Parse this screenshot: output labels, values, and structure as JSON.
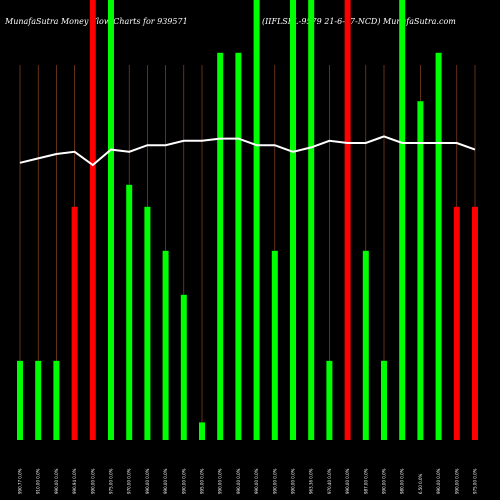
{
  "header": {
    "left": "MunafaSutra  Money Flow  Charts for 939571",
    "right": "(IIFLSFL-9579 21-6-27-NCD) MunafaSutra.com"
  },
  "colors": {
    "background": "#000000",
    "up": "#00ff00",
    "down": "#ff0000",
    "line": "#ffffff",
    "gridline": "#a0522d"
  },
  "chart_data": {
    "type": "bar",
    "ylim": [
      0,
      100
    ],
    "categories": [
      "990.77 0.0%",
      "910.00 0.0%",
      "990.00 0.0%",
      "990.94 0.0%",
      "990.00 0.0%",
      "975.00 0.0%",
      "970.00 0.0%",
      "990.00 0.0%",
      "990.00 0.0%",
      "990.00 0.0%",
      "995.00 0.0%",
      "990.00 0.0%",
      "990.00 0.0%",
      "990.00 0.0%",
      "990.00 0.0%",
      "990.00 0.0%",
      "963.36 0.0%",
      "970.40 0.0%",
      "990.00 0.0%",
      "987.00 0.0%",
      "990.00 0.0%",
      "980.00 0.0%",
      "6.50 0.0%",
      "990.00 0.0%",
      "990.00 0.0%",
      "975.00 0.0%"
    ],
    "series": [
      {
        "values": [
          18,
          18,
          18,
          53,
          100,
          100,
          58,
          53,
          43,
          33,
          4,
          88,
          88,
          100,
          43,
          100,
          100,
          18,
          100,
          43,
          18,
          100,
          77,
          88,
          53,
          53
        ],
        "colors": [
          "up",
          "up",
          "up",
          "down",
          "down",
          "up",
          "up",
          "up",
          "up",
          "up",
          "up",
          "up",
          "up",
          "up",
          "up",
          "up",
          "up",
          "up",
          "down",
          "up",
          "up",
          "up",
          "up",
          "up",
          "down",
          "down"
        ]
      },
      {
        "type": "line",
        "values": [
          63,
          64,
          65,
          65.5,
          62.5,
          66,
          65.5,
          67,
          67,
          68,
          68,
          68.5,
          68.5,
          67,
          67,
          65.5,
          66.5,
          68,
          67.5,
          67.5,
          69,
          67.5,
          67.5,
          67.5,
          67.5,
          66
        ]
      }
    ]
  }
}
